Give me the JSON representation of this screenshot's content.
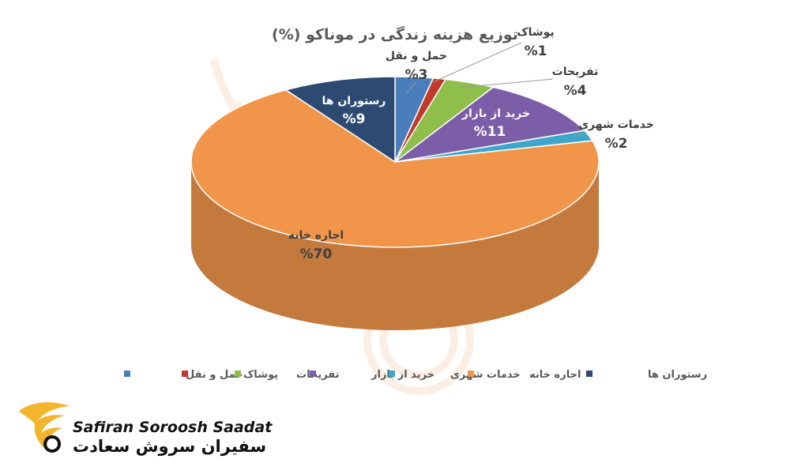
{
  "chart_data": {
    "type": "pie",
    "title": "توزیع هزینه زندگی در موناکو (%)",
    "slices": [
      {
        "label": "حمل و نقل",
        "value": 3,
        "value_label": "%3",
        "color": "#4a7ebb"
      },
      {
        "label": "پوشاک",
        "value": 1,
        "value_label": "%1",
        "color": "#c0392b"
      },
      {
        "label": "تفریحات",
        "value": 4,
        "value_label": "%4",
        "color": "#8fbf4a"
      },
      {
        "label": "خرید از بازار",
        "value": 11,
        "value_label": "%11",
        "color": "#7b5ea7"
      },
      {
        "label": "خدمات شهری",
        "value": 2,
        "value_label": "%2",
        "color": "#3ea6c8"
      },
      {
        "label": "اجاره خانه",
        "value": 70,
        "value_label": "%70",
        "color": "#f0954a"
      },
      {
        "label": "رستوران ها",
        "value": 9,
        "value_label": "%9",
        "color": "#2c4a72"
      }
    ],
    "legend_position": "bottom"
  },
  "logo": {
    "name_en": "Safiran Soroosh Saadat",
    "name_fa": "سفیران سروش سعادت"
  }
}
